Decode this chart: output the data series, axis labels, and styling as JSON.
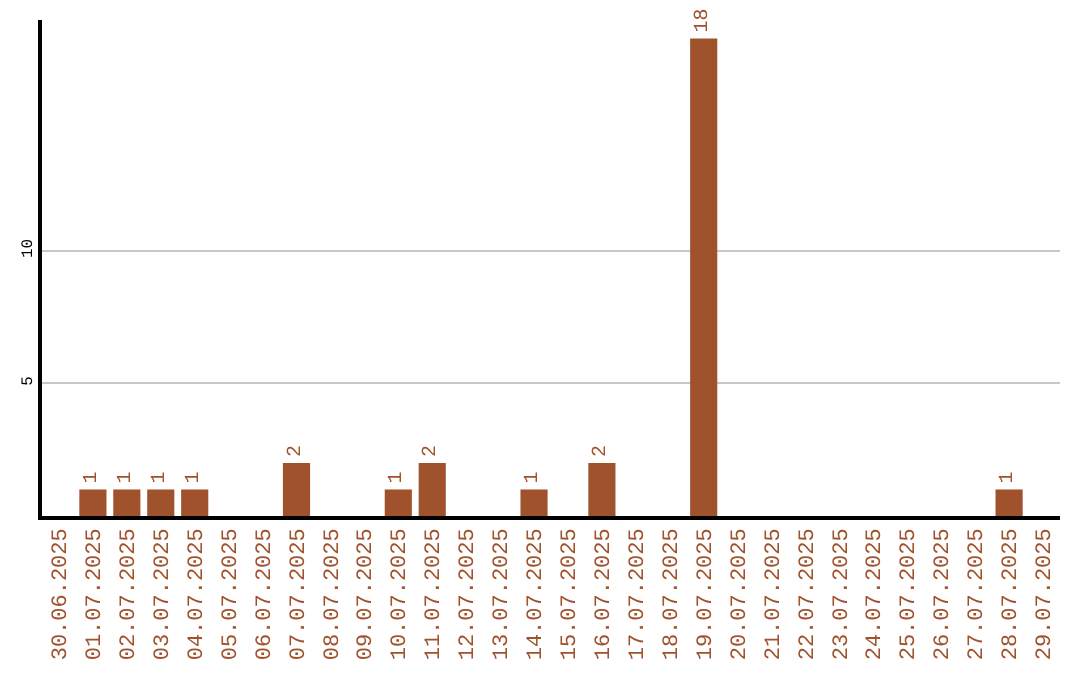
{
  "chart_data": {
    "type": "bar",
    "categories": [
      "30.06.2025",
      "01.07.2025",
      "02.07.2025",
      "03.07.2025",
      "04.07.2025",
      "05.07.2025",
      "06.07.2025",
      "07.07.2025",
      "08.07.2025",
      "09.07.2025",
      "10.07.2025",
      "11.07.2025",
      "12.07.2025",
      "13.07.2025",
      "14.07.2025",
      "15.07.2025",
      "16.07.2025",
      "17.07.2025",
      "18.07.2025",
      "19.07.2025",
      "20.07.2025",
      "21.07.2025",
      "22.07.2025",
      "23.07.2025",
      "24.07.2025",
      "25.07.2025",
      "26.07.2025",
      "27.07.2025",
      "28.07.2025",
      "29.07.2025"
    ],
    "values": [
      0,
      1,
      1,
      1,
      1,
      0,
      0,
      2,
      0,
      0,
      1,
      2,
      0,
      0,
      1,
      0,
      2,
      0,
      0,
      18,
      0,
      0,
      0,
      0,
      0,
      0,
      0,
      0,
      1,
      0
    ],
    "value_labels": [
      null,
      "1",
      "1",
      "1",
      "1",
      null,
      null,
      "2",
      null,
      null,
      "1",
      "2",
      null,
      null,
      "1",
      null,
      "2",
      null,
      null,
      "18",
      null,
      null,
      null,
      null,
      null,
      null,
      null,
      null,
      "1",
      null
    ],
    "color": "#a0522d",
    "ylim": [
      0,
      18.7
    ],
    "yticks": [
      5,
      10
    ],
    "grid": "y",
    "legend": false
  }
}
